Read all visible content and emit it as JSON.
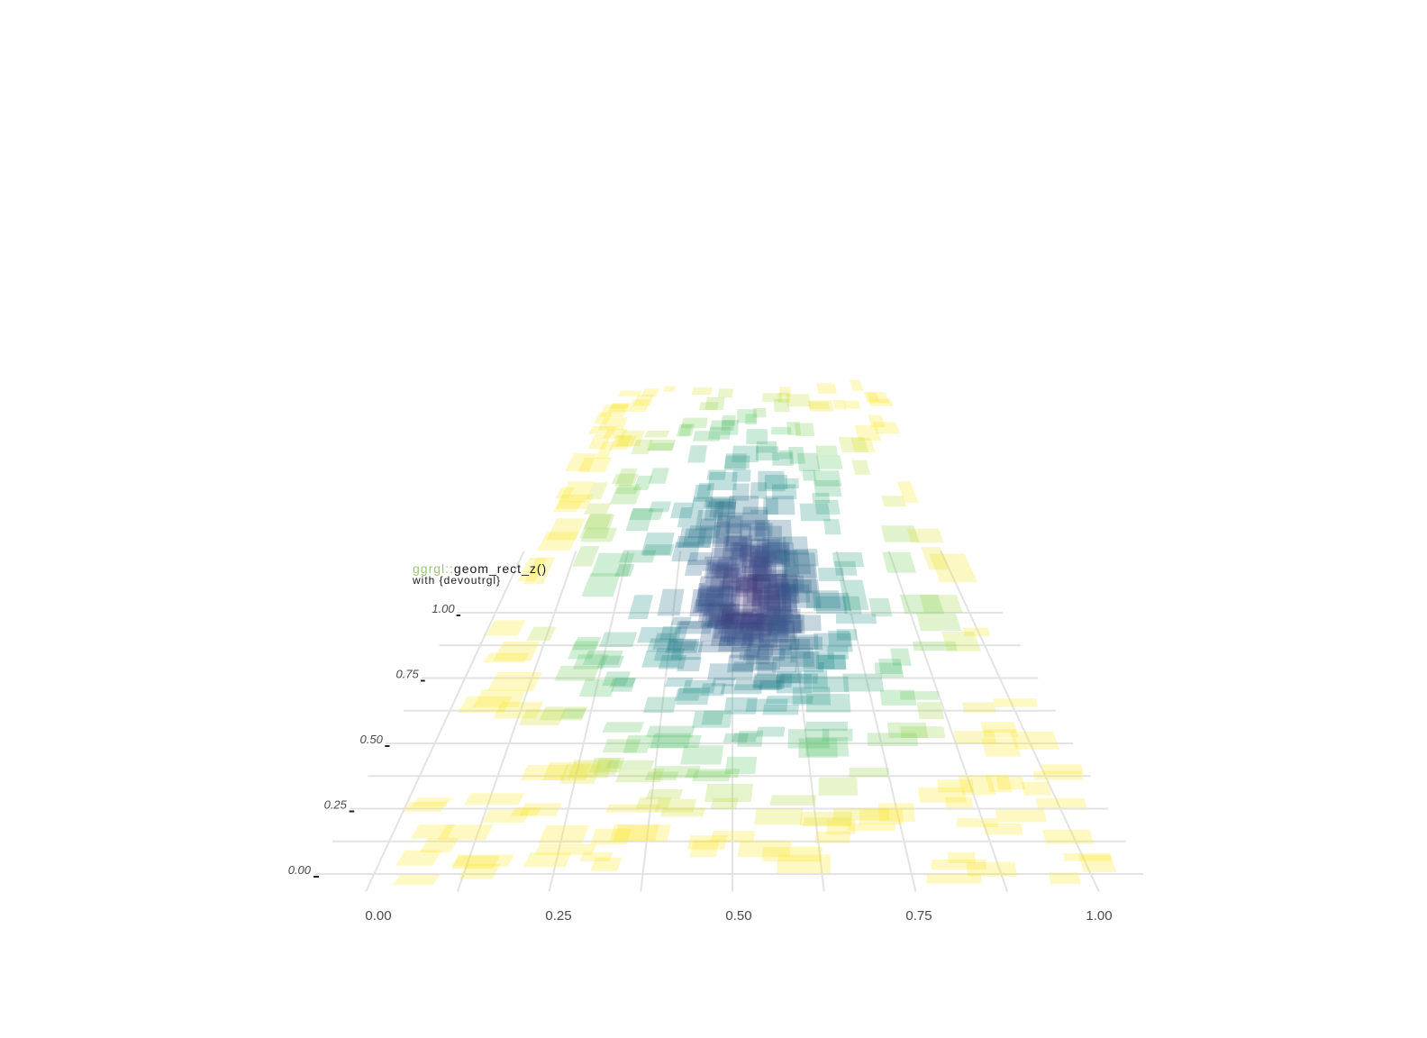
{
  "chart_data": {
    "type": "rect3d",
    "title_prefix": "ggrgl::",
    "title_main": "geom_rect_z()",
    "subtitle": "with {devoutrgl}",
    "x_ticks": [
      "0.00",
      "0.25",
      "0.50",
      "0.75",
      "1.00"
    ],
    "y_ticks": [
      "0.00",
      "0.25",
      "0.50",
      "0.75",
      "1.00"
    ],
    "xlim": [
      0,
      1
    ],
    "ylim": [
      0,
      1
    ],
    "grid": true,
    "legend": "none",
    "colors": {
      "background": "#ffffff",
      "grid": "#e3e3e3",
      "title_prefix": "#9ac77a",
      "text": "#1a1a1a",
      "axis_text": "#4a4a4a",
      "palette": [
        "#440154",
        "#3b528b",
        "#21918c",
        "#5ec962",
        "#fde725"
      ]
    },
    "rect_fill_opacity": 0.28,
    "rect_count": 500,
    "rect_fill": "viridis by distance from centre (0.5, 0.5)"
  }
}
